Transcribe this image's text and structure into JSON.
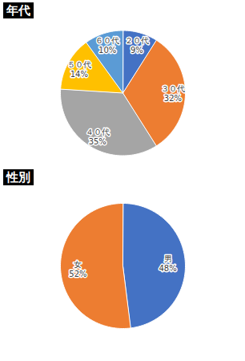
{
  "chart_data": [
    {
      "type": "pie",
      "title": "年代",
      "categories": [
        "２０代",
        "３０代",
        "４０代",
        "５０代",
        "６０代"
      ],
      "values": [
        9,
        32,
        35,
        14,
        10
      ],
      "value_labels": [
        "9%",
        "32%",
        "35%",
        "14%",
        "10%"
      ],
      "colors": [
        "#4472c4",
        "#ed7d31",
        "#a5a5a5",
        "#ffc000",
        "#5b9bd5"
      ],
      "data_labels": true
    },
    {
      "type": "pie",
      "title": "性別",
      "categories": [
        "男",
        "女"
      ],
      "values": [
        48,
        52
      ],
      "value_labels": [
        "48%",
        "52%"
      ],
      "colors": [
        "#4472c4",
        "#ed7d31"
      ],
      "data_labels": true
    }
  ]
}
